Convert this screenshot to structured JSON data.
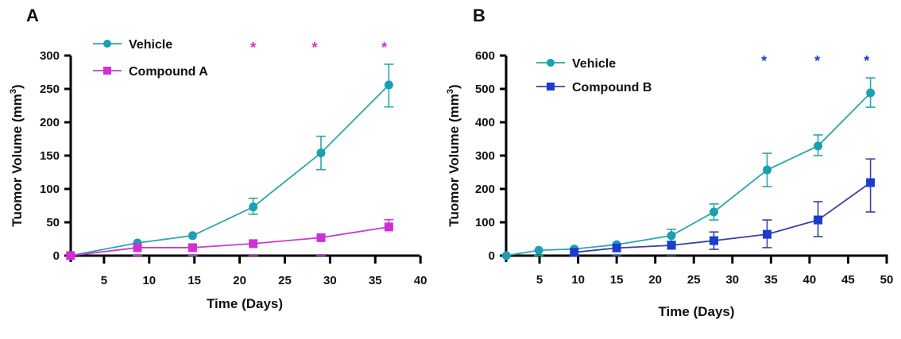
{
  "chart_data": [
    {
      "type": "line",
      "panel_label": "A",
      "xlabel": "Time (Days)",
      "ylabel": "Tuomor Volume (mm",
      "ylabel_superscript": "3",
      "ylabel_suffix": ")",
      "xlim": [
        1.3,
        40
      ],
      "ylim": [
        0,
        300
      ],
      "xticks": [
        5,
        10,
        15,
        20,
        25,
        30,
        35,
        40
      ],
      "yticks": [
        0,
        50,
        100,
        150,
        200,
        250,
        300
      ],
      "legend_position": "top-left",
      "grid": false,
      "series": [
        {
          "name": "Vehicle",
          "marker": "circle",
          "color": "#1b9fb2",
          "line_color": "#2aa6ab",
          "x": [
            1.3,
            8.7,
            14.8,
            21.5,
            29,
            36.5
          ],
          "y": [
            0,
            19,
            30,
            73,
            154,
            256
          ],
          "err_upper": [
            0,
            0,
            0,
            86,
            179,
            287
          ],
          "err_lower": [
            0,
            0,
            0,
            62,
            129,
            223
          ]
        },
        {
          "name": "Compound A",
          "marker": "square",
          "color": "#d12fd4",
          "line_color": "#c83ccf",
          "x": [
            1.3,
            8.7,
            14.8,
            21.5,
            29,
            36.5
          ],
          "y": [
            0,
            12,
            12,
            18,
            27,
            43
          ],
          "err_upper": [
            0,
            0,
            0,
            0,
            0,
            54
          ],
          "err_lower": [
            0,
            0,
            0,
            0,
            0,
            43
          ]
        }
      ],
      "annotations": [
        {
          "text": "*",
          "x": 21.5,
          "color": "#d12fd4"
        },
        {
          "text": "*",
          "x": 28.3,
          "color": "#d12fd4"
        },
        {
          "text": "*",
          "x": 36.0,
          "color": "#d12fd4"
        }
      ]
    },
    {
      "type": "line",
      "panel_label": "B",
      "xlabel": "Time (Days)",
      "ylabel": "Tuomor Volume (mm",
      "ylabel_superscript": "3",
      "ylabel_suffix": ")",
      "xlim": [
        0.7,
        50
      ],
      "ylim": [
        0,
        600
      ],
      "xticks": [
        5,
        10,
        15,
        20,
        25,
        30,
        35,
        40,
        45,
        50
      ],
      "yticks": [
        0,
        100,
        200,
        300,
        400,
        500,
        600
      ],
      "legend_position": "top-left",
      "grid": false,
      "series": [
        {
          "name": "Vehicle",
          "marker": "circle",
          "color": "#1b9fb2",
          "line_color": "#2aa6ab",
          "x": [
            0.7,
            4.9,
            9.5,
            15,
            22.1,
            27.6,
            34.5,
            41.1,
            47.9
          ],
          "y": [
            0,
            16,
            20,
            33,
            60,
            131,
            257,
            329,
            488
          ],
          "err_upper": [
            0,
            0,
            0,
            0,
            79,
            155,
            307,
            362,
            533
          ],
          "err_lower": [
            0,
            0,
            0,
            0,
            43,
            107,
            207,
            300,
            445
          ]
        },
        {
          "name": "Compound B",
          "marker": "square",
          "color": "#1c3ccc",
          "line_color": "#3a3fa6",
          "x": [
            9.5,
            15,
            22.1,
            27.6,
            34.5,
            41.1,
            47.9
          ],
          "y": [
            10,
            23,
            31,
            45,
            64,
            107,
            219
          ],
          "err_upper": [
            0,
            0,
            0,
            71,
            107,
            162,
            290
          ],
          "err_lower": [
            0,
            0,
            0,
            19,
            24,
            57,
            131
          ]
        }
      ],
      "annotations": [
        {
          "text": "*",
          "x": 34.1,
          "color": "#1c3ccc"
        },
        {
          "text": "*",
          "x": 41.0,
          "color": "#1c3ccc"
        },
        {
          "text": "*",
          "x": 47.4,
          "color": "#1c3ccc"
        }
      ]
    }
  ]
}
